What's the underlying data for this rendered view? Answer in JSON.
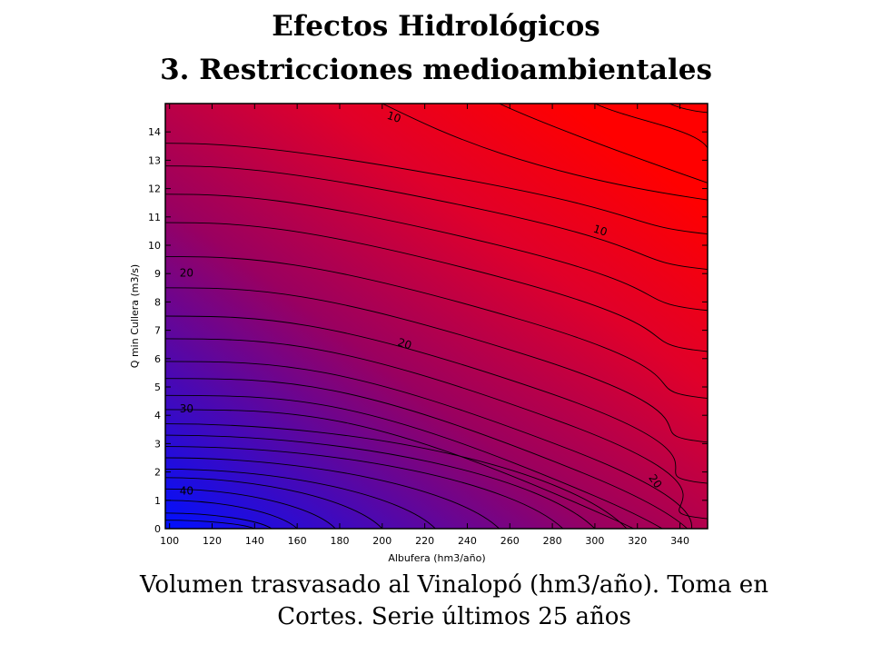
{
  "slide": {
    "title_line1": "Efectos Hidrológicos",
    "title_line2": "3. Restricciones medioambientales",
    "caption_line1": "Volumen trasvasado al Vinalopó (hm3/año). Toma en",
    "caption_line2": "Cortes. Serie últimos 25 años"
  },
  "chart_data": {
    "type": "contour",
    "xlabel": "Albufera (hm3/año)",
    "ylabel": "Q min Cullera (m3/s)",
    "xlim": [
      98,
      353
    ],
    "ylim": [
      0,
      15
    ],
    "x_ticks": [
      "100",
      "120",
      "140",
      "160",
      "180",
      "200",
      "220",
      "240",
      "260",
      "280",
      "300",
      "320",
      "340"
    ],
    "y_ticks": [
      "0",
      "1",
      "2",
      "3",
      "4",
      "5",
      "6",
      "7",
      "8",
      "9",
      "10",
      "11",
      "12",
      "13",
      "14"
    ],
    "color_scale": {
      "low": "#0010ff",
      "high": "#ff0000"
    },
    "contour_labels": [
      {
        "text": "10",
        "x": 205,
        "y": 14.4
      },
      {
        "text": "10",
        "x": 302,
        "y": 10.4
      },
      {
        "text": "20",
        "x": 108,
        "y": 8.9
      },
      {
        "text": "20",
        "x": 210,
        "y": 6.4
      },
      {
        "text": "20",
        "x": 327,
        "y": 1.6
      },
      {
        "text": "30",
        "x": 108,
        "y": 4.1
      },
      {
        "text": "40",
        "x": 108,
        "y": 1.2
      }
    ]
  }
}
